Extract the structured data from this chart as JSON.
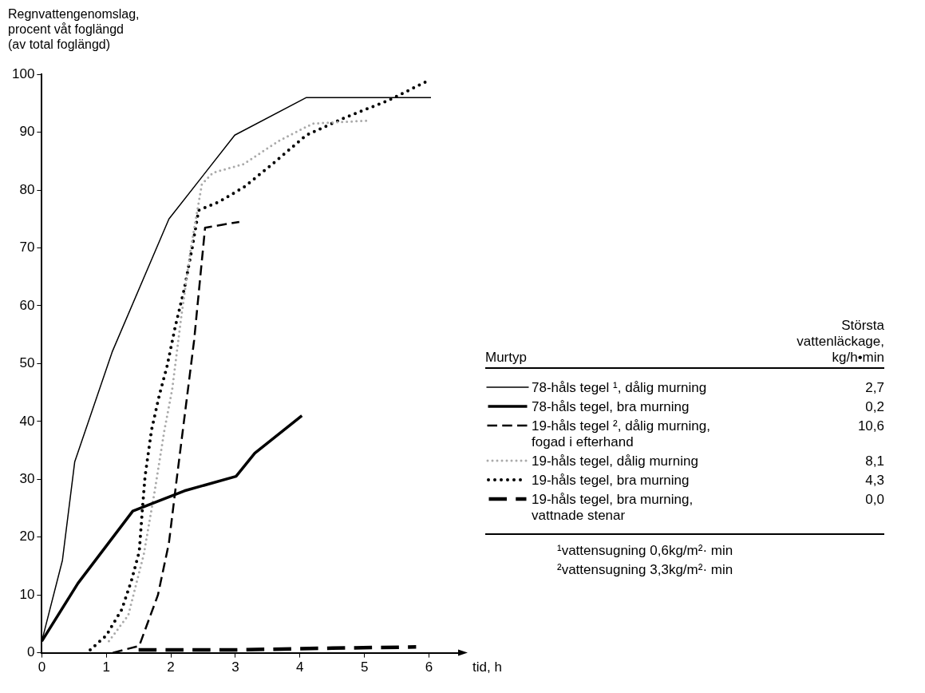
{
  "chart_data": {
    "type": "line",
    "ylabel": "Regnvattengenomslag,\nprocent våt foglängd\n(av total foglängd)",
    "xlabel": "tid, h",
    "legend_title": "Murtyp",
    "xlim": [
      0,
      6.5
    ],
    "xticks": [
      0,
      1,
      2,
      3,
      4,
      5,
      6
    ],
    "ylim": [
      0,
      100
    ],
    "yticks": [
      0,
      10,
      20,
      30,
      40,
      50,
      60,
      70,
      80,
      90,
      100
    ],
    "grid": false,
    "legend": "right",
    "marker": "none",
    "series": [
      {
        "name": "78-håls tegel ¹, dålig murning",
        "color": "#000000",
        "line_style": "solid",
        "x": [
          0,
          0.32,
          0.51,
          1.09,
          1.97,
          2.99,
          4.1,
          6.03
        ],
        "values": [
          2,
          16,
          33,
          52,
          75,
          89.5,
          96,
          96
        ]
      },
      {
        "name": "78-håls tegel, bra murning",
        "color": "#000000",
        "line_style": "solid",
        "x": [
          0,
          0.56,
          1.41,
          2.21,
          3.01,
          3.3,
          4.03
        ],
        "values": [
          2,
          12,
          24.5,
          28,
          30.5,
          34.5,
          41
        ]
      },
      {
        "name": "19-håls tegel ², dålig murning,\nfogad i efterhand",
        "color": "#000000",
        "line_style": "dashed",
        "x": [
          1.1,
          1.51,
          1.8,
          1.97,
          2.09,
          2.36,
          2.53,
          3.06
        ],
        "values": [
          0,
          1.2,
          10,
          19,
          30,
          54,
          73.5,
          74.5
        ]
      },
      {
        "name": "19-håls tegel, dålig murning",
        "color": "#aaaaaa",
        "line_style": "dotted",
        "x": [
          1.04,
          1.34,
          1.58,
          1.75,
          1.9,
          2.02,
          2.16,
          2.31,
          2.48,
          2.65,
          3.13,
          3.67,
          4.2,
          5.03
        ],
        "values": [
          2,
          6.5,
          17,
          28,
          38.5,
          45.5,
          58,
          70,
          81,
          83,
          84.5,
          88.5,
          91.5,
          92
        ]
      },
      {
        "name": "19-håls tegel, bra murning",
        "color": "#000000",
        "line_style": "dotted",
        "x": [
          0.75,
          1.0,
          1.24,
          1.39,
          1.51,
          1.56,
          1.6,
          1.7,
          1.82,
          1.94,
          2.07,
          2.21,
          2.33,
          2.43,
          2.75,
          3.13,
          3.52,
          4.1,
          4.69,
          5.37,
          6.0
        ],
        "values": [
          0.5,
          3,
          7.5,
          12.5,
          17.5,
          25,
          30.5,
          38.5,
          44.5,
          49.5,
          56.5,
          63,
          70,
          76.5,
          78,
          80.5,
          84,
          89.5,
          92.5,
          95.5,
          99
        ]
      },
      {
        "name": "19-håls tegel, bra murning,\nvattnade stenar",
        "color": "#000000",
        "line_style": "dashed",
        "x": [
          1.5,
          3,
          4.5,
          5.8
        ],
        "values": [
          0.5,
          0.5,
          0.8,
          1
        ]
      }
    ],
    "annotations": [
      "Största\nvattenläckage,\nkg/h•min",
      "2,7",
      "0,2",
      "10,6",
      "8,1",
      "4,3",
      "0,0",
      "¹vattensugning 0,6kg/m²· min",
      "²vattensugning 3,3kg/m²· min"
    ]
  }
}
